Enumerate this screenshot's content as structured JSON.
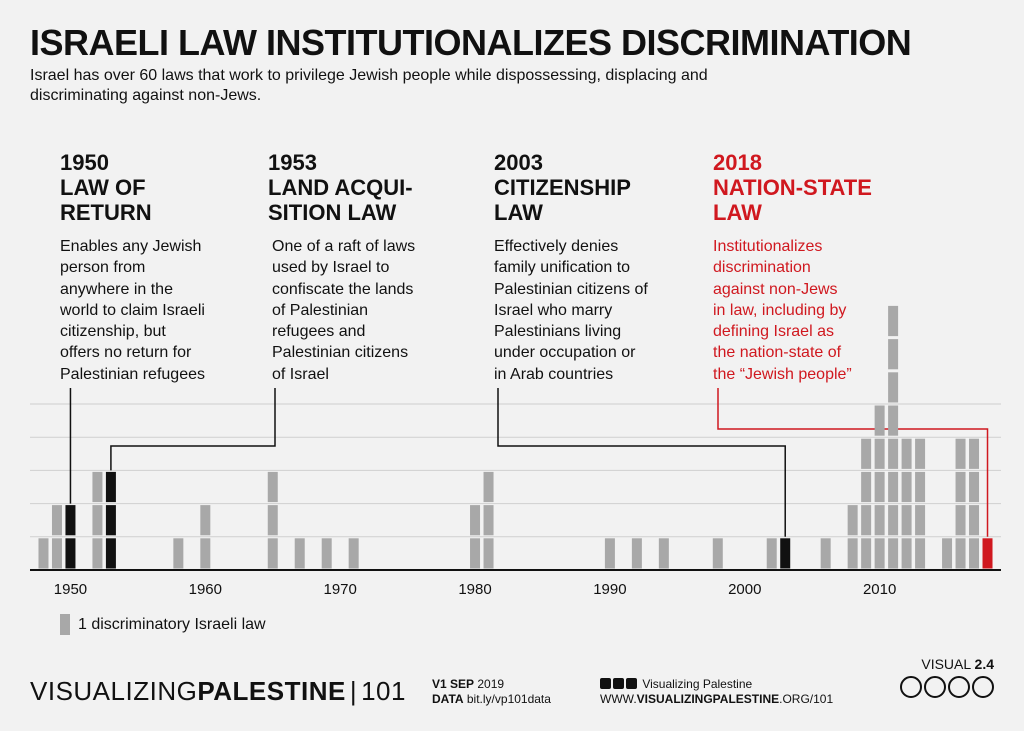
{
  "title": "ISRAELI LAW INSTITUTIONALIZES DISCRIMINATION",
  "subtitle": "Israel has over 60 laws that work to privilege Jewish people while dispossessing, displacing and discriminating against non-Jews.",
  "events": [
    {
      "year": "1950",
      "lines": [
        "LAW OF",
        "RETURN"
      ],
      "desc": [
        "Enables any Jewish",
        "person from",
        "anywhere in the",
        "world to claim Israeli",
        "citizenship, but",
        "offers no return for",
        "Palestinian refugees"
      ],
      "color": "#111111"
    },
    {
      "year": "1953",
      "lines": [
        "LAND ACQUI-",
        "SITION LAW"
      ],
      "desc": [
        "One of a raft of laws",
        "used by Israel to",
        "confiscate the lands",
        "of Palestinian",
        "refugees and",
        "Palestinian citizens",
        "of Israel"
      ],
      "color": "#111111"
    },
    {
      "year": "2003",
      "lines": [
        "CITIZENSHIP",
        "LAW"
      ],
      "desc": [
        "Effectively denies",
        "family unification to",
        "Palestinian citizens of",
        "Israel who marry",
        "Palestinians living",
        "under occupation or",
        "in Arab countries"
      ],
      "color": "#111111"
    },
    {
      "year": "2018",
      "lines": [
        "NATION-STATE",
        "LAW"
      ],
      "desc": [
        "Institutionalizes",
        "discrimination",
        "against non-Jews",
        "in law, including by",
        "defining Israel as",
        "the nation-state of",
        "the “Jewish people”"
      ],
      "color": "#d0181f"
    }
  ],
  "chart_data": {
    "type": "bar",
    "unit": "1 discriminatory Israeli law",
    "x": [
      1948,
      1949,
      1950,
      1952,
      1953,
      1958,
      1960,
      1965,
      1967,
      1969,
      1971,
      1980,
      1981,
      1990,
      1992,
      1994,
      1998,
      2002,
      2003,
      2006,
      2008,
      2009,
      2010,
      2011,
      2012,
      2013,
      2015,
      2016,
      2017,
      2018
    ],
    "values": [
      1,
      2,
      2,
      3,
      3,
      1,
      2,
      3,
      1,
      1,
      1,
      2,
      3,
      1,
      1,
      1,
      1,
      1,
      1,
      1,
      2,
      4,
      5,
      8,
      4,
      4,
      1,
      4,
      4,
      1
    ],
    "highlight": {
      "1950": "#111111",
      "1953": "#111111",
      "2003": "#111111",
      "2018": "#d0181f"
    },
    "xticks": [
      1950,
      1960,
      1970,
      1980,
      1990,
      2000,
      2010
    ],
    "xlim": [
      1947,
      2019
    ],
    "ylim": [
      0,
      8
    ],
    "bar_color": "#a8a8a8"
  },
  "legend": {
    "label": "1 discriminatory Israeli law"
  },
  "footer": {
    "brand_light": "VISUALIZING",
    "brand_bold": "PALESTINE",
    "brand_num": "101",
    "version_prefix": "V1 ",
    "version_bold": "SEP",
    "version_year": " 2019",
    "data_label": "DATA",
    "data_link": " bit.ly/vp101data",
    "social_name": "Visualizing Palestine",
    "url_prefix": "WWW.",
    "url_bold": "VISUALIZINGPALESTINE",
    "url_suffix": ".ORG/101",
    "visual_label": "VISUAL ",
    "visual_num": "2.4"
  }
}
